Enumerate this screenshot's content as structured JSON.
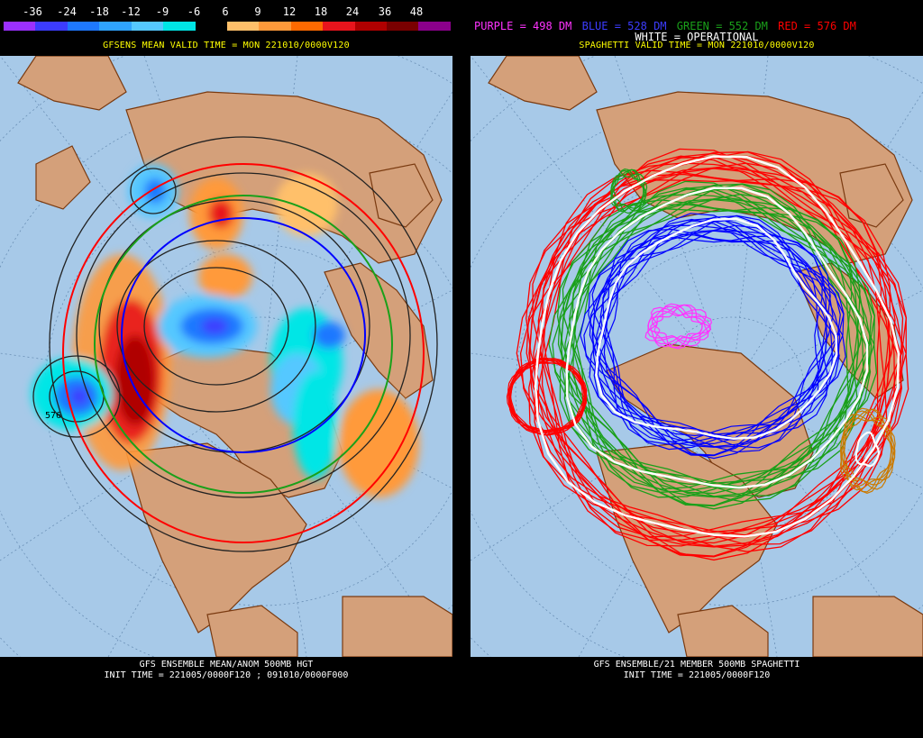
{
  "left": {
    "legend_values": [
      "-36",
      "-24",
      "-18",
      "-12",
      "-9",
      "-6",
      "6",
      "9",
      "12",
      "18",
      "24",
      "36",
      "48"
    ],
    "legend_colors": [
      "#9b30ff",
      "#3c3cff",
      "#1e78ff",
      "#2fa4ff",
      "#55c8ff",
      "#00e6e6",
      "#000000",
      "#ffc06a",
      "#ff9a3a",
      "#ff6a00",
      "#e8141c",
      "#b00000",
      "#7a0000",
      "#8b008b"
    ],
    "valid_time": "GFSENS MEAN VALID TIME = MON 221010/0000V120",
    "footer_line1": "GFS ENSEMBLE MEAN/ANOM 500MB HGT",
    "footer_line2": "INIT TIME = 221005/0000F120 ; 091010/0000F000",
    "contour_label": "576"
  },
  "right": {
    "legend": {
      "purple": "PURPLE = 498 DM",
      "blue": "BLUE = 528 DM",
      "green": "GREEN = 552 DM",
      "red": "RED = 576 DM"
    },
    "white_label": "WHITE = OPERATIONAL",
    "valid_time": "SPAGHETTI VALID TIME = MON 221010/0000V120",
    "footer_line1": "GFS ENSEMBLE/21 MEMBER 500MB SPAGHETTI",
    "footer_line2": "INIT TIME = 221005/0000F120"
  },
  "colors": {
    "ocean": "#a7c9e8",
    "land": "#d4a07a",
    "border": "#7a3a10",
    "purple": "#ff33ff",
    "blue": "#0000ff",
    "green": "#1aa01a",
    "red": "#ff0000",
    "orange_spag": "#cc7a00"
  }
}
